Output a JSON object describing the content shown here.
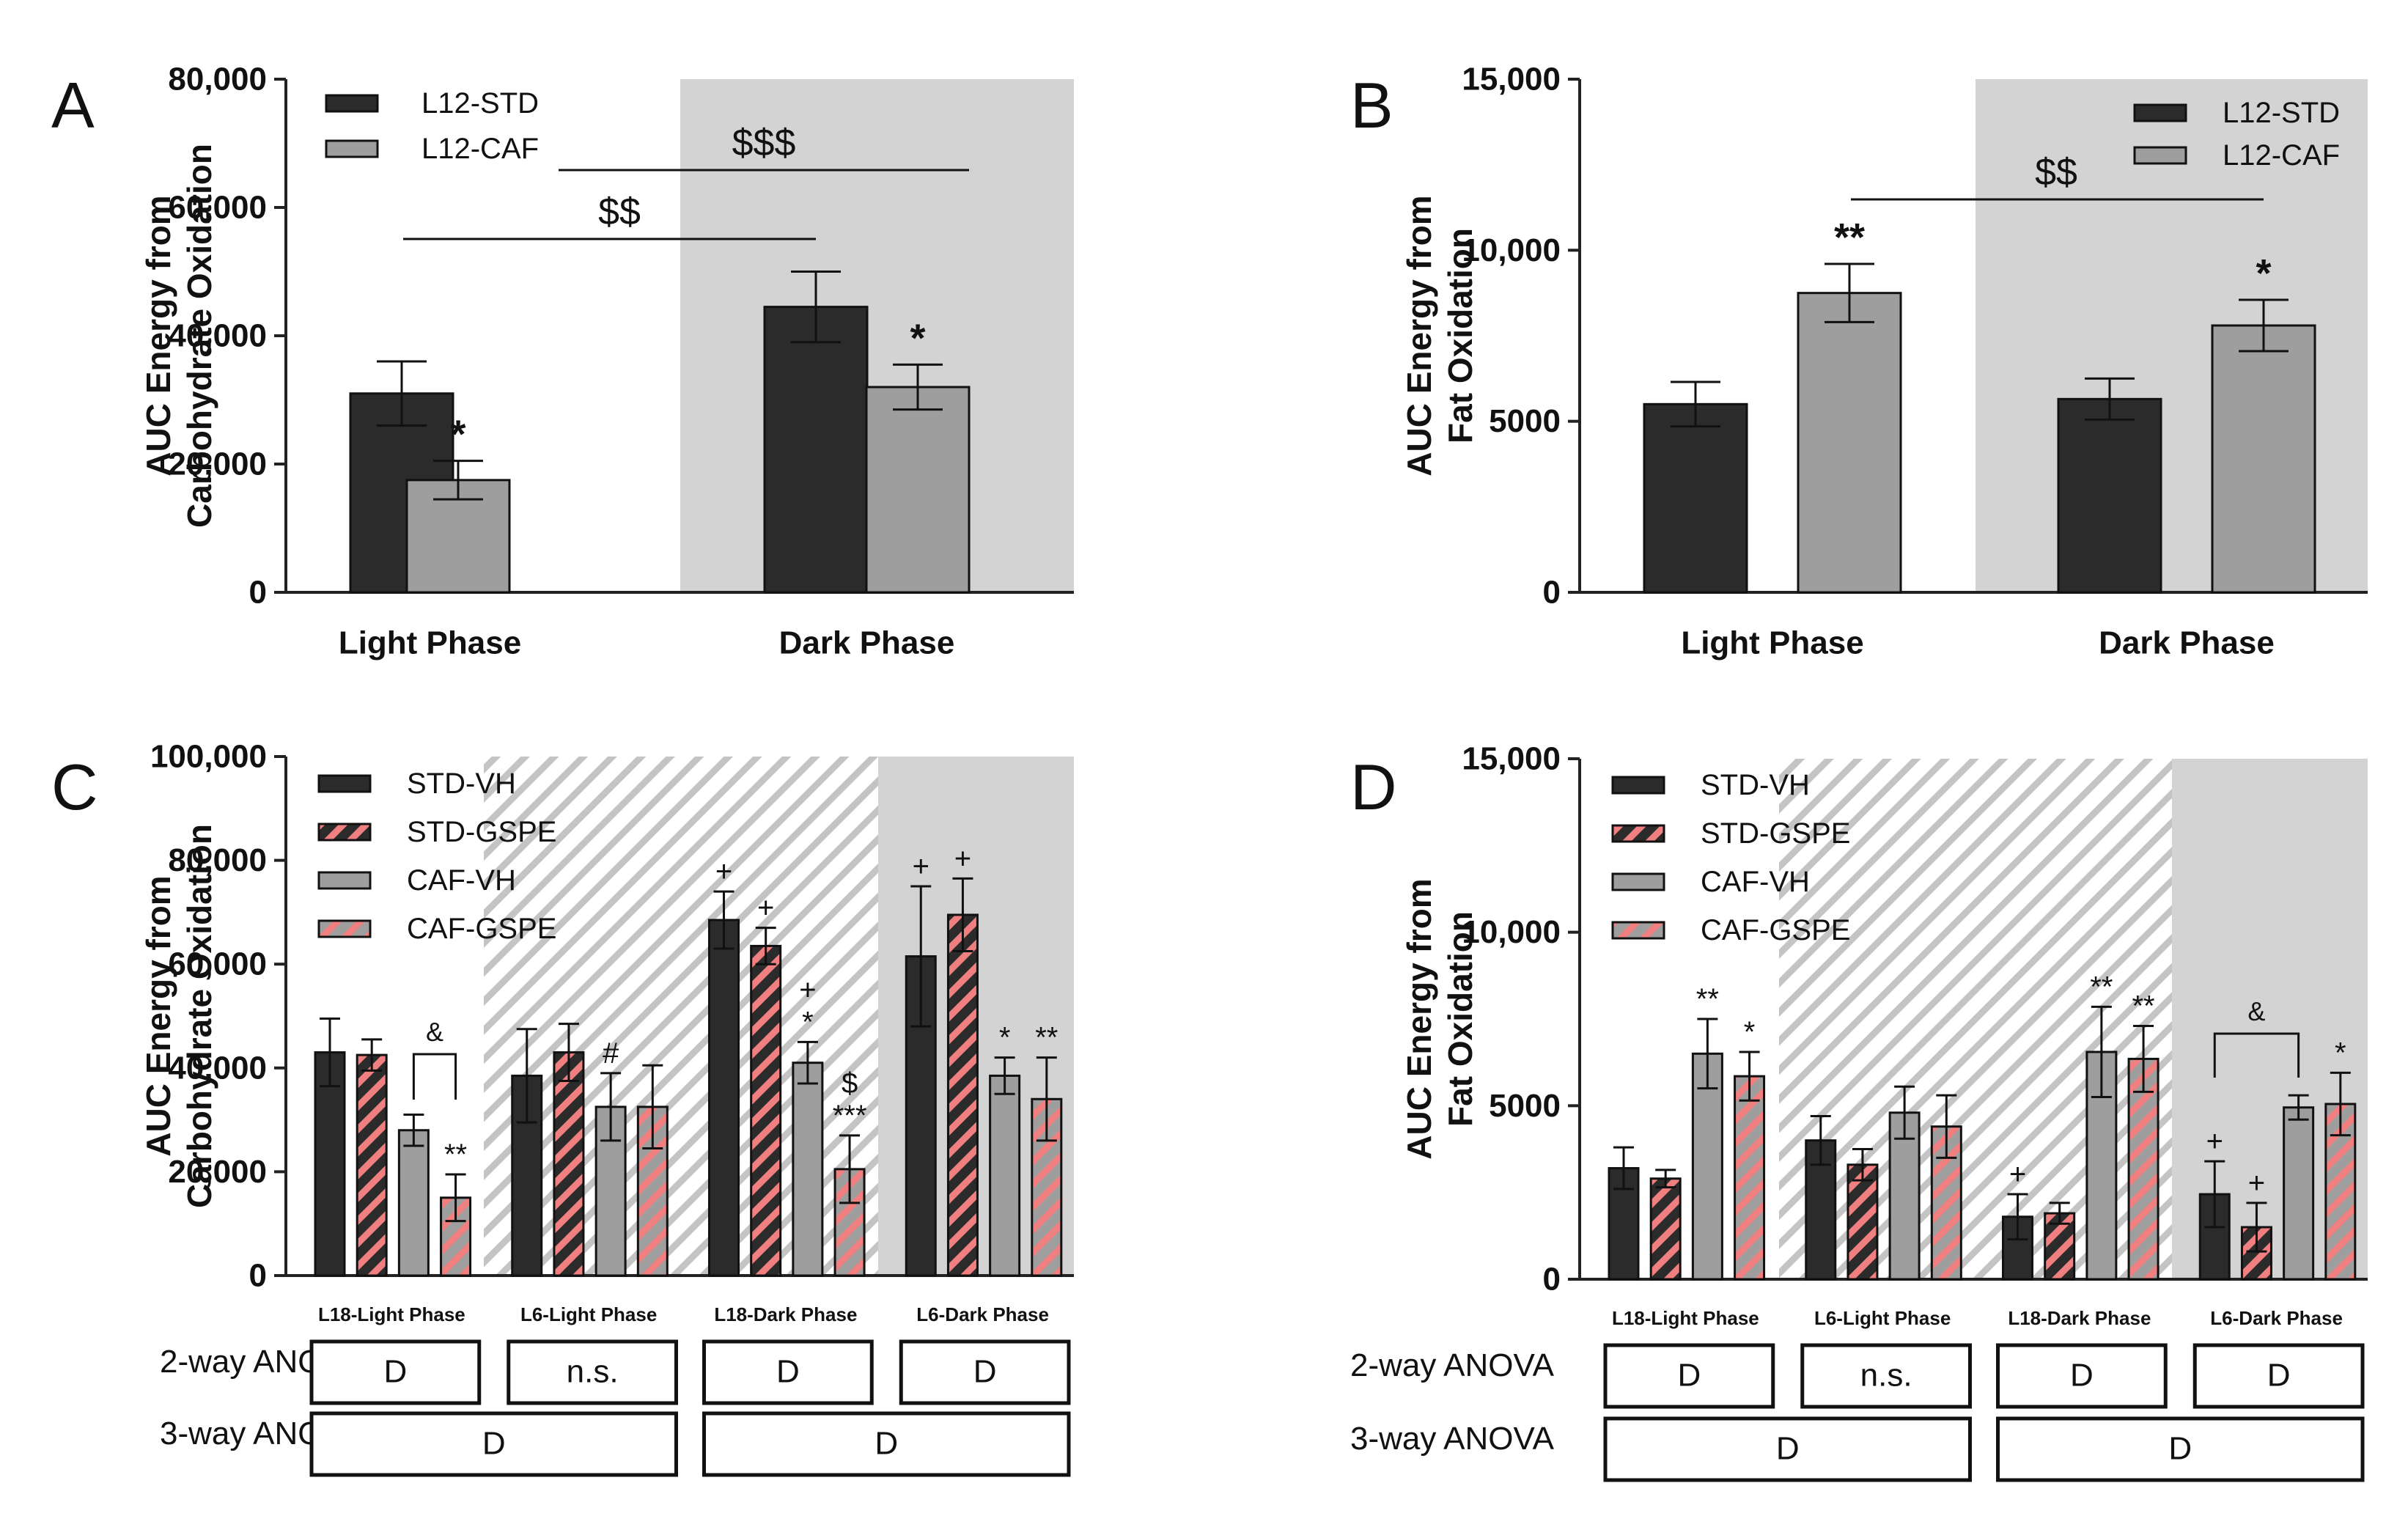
{
  "colors": {
    "std": "#2b2b2b",
    "caf": "#9e9e9e",
    "gspe_stripe": "#f08080",
    "shade": "#d3d3d3",
    "hatch": "#bdbdbd"
  },
  "chart_data": [
    {
      "panel": "A",
      "type": "bar",
      "ylabel": [
        "AUC Energy from",
        "Carbohydrate Oxidation"
      ],
      "ylim": [
        0,
        80000
      ],
      "yticks": [
        "0",
        "20,000",
        "40,000",
        "60,000",
        "80,000"
      ],
      "categories": [
        "Light Phase",
        "Dark Phase"
      ],
      "legend": [
        "L12-STD",
        "L12-CAF"
      ],
      "series": [
        {
          "name": "L12-STD",
          "values": [
            31000,
            44500
          ],
          "errors": [
            5000,
            5500
          ]
        },
        {
          "name": "L12-CAF",
          "values": [
            17500,
            32000
          ],
          "errors": [
            3000,
            3500
          ]
        }
      ],
      "annotations": {
        "stars": [
          "",
          "*",
          "",
          "*"
        ],
        "comparisons": [
          "$$",
          "$$$"
        ]
      }
    },
    {
      "panel": "B",
      "type": "bar",
      "ylabel": [
        "AUC Energy from",
        "Fat Oxidation"
      ],
      "ylim": [
        0,
        15000
      ],
      "yticks": [
        "0",
        "5000",
        "10,000",
        "15,000"
      ],
      "categories": [
        "Light Phase",
        "Dark Phase"
      ],
      "legend": [
        "L12-STD",
        "L12-CAF"
      ],
      "series": [
        {
          "name": "L12-STD",
          "values": [
            5500,
            5650
          ],
          "errors": [
            650,
            600
          ]
        },
        {
          "name": "L12-CAF",
          "values": [
            8750,
            7800
          ],
          "errors": [
            850,
            750
          ]
        }
      ],
      "annotations": {
        "stars": [
          "",
          "**",
          "",
          "*"
        ],
        "comparisons": [
          "$$"
        ]
      }
    },
    {
      "panel": "C",
      "type": "bar",
      "ylabel": [
        "AUC Energy from",
        "Carbohydrate Oxidation"
      ],
      "ylim": [
        0,
        100000
      ],
      "yticks": [
        "0",
        "20,000",
        "40,000",
        "60,000",
        "80,000",
        "100,000"
      ],
      "categories": [
        "L18-Light Phase",
        "L6-Light Phase",
        "L18-Dark Phase",
        "L6-Dark Phase"
      ],
      "legend": [
        "STD-VH",
        "STD-GSPE",
        "CAF-VH",
        "CAF-GSPE"
      ],
      "series": [
        {
          "name": "STD-VH",
          "values": [
            43000,
            38500,
            68500,
            61500
          ],
          "errors": [
            6500,
            9000,
            5500,
            13500
          ]
        },
        {
          "name": "STD-GSPE",
          "values": [
            42500,
            43000,
            63500,
            69500
          ],
          "errors": [
            3000,
            5500,
            3500,
            7000
          ]
        },
        {
          "name": "CAF-VH",
          "values": [
            28000,
            32500,
            41000,
            38500
          ],
          "errors": [
            3000,
            6500,
            4000,
            3500
          ]
        },
        {
          "name": "CAF-GSPE",
          "values": [
            15000,
            32500,
            20500,
            34000
          ],
          "errors": [
            4500,
            8000,
            6500,
            8000
          ]
        }
      ],
      "annotations": {
        "marks": [
          "",
          "",
          "",
          "**",
          "",
          "",
          "#",
          "",
          "+",
          "+",
          "+",
          "$",
          "+",
          "+",
          "*",
          "**"
        ],
        "marks2": [
          "",
          "",
          "",
          "",
          "",
          "",
          "",
          "",
          "",
          "",
          "*",
          "***",
          "",
          "",
          "",
          ""
        ],
        "bracket": "&"
      },
      "anova": {
        "two_way_label": "2-way ANOVA",
        "two_way": [
          "D",
          "n.s.",
          "D",
          "D"
        ],
        "three_way_label": "3-way ANOVA",
        "three_way": [
          "D",
          "D"
        ]
      }
    },
    {
      "panel": "D",
      "type": "bar",
      "ylabel": [
        "AUC Energy from",
        "Fat Oxidation"
      ],
      "ylim": [
        0,
        15000
      ],
      "yticks": [
        "0",
        "5000",
        "10,000",
        "15,000"
      ],
      "categories": [
        "L18-Light Phase",
        "L6-Light Phase",
        "L18-Dark Phase",
        "L6-Dark Phase"
      ],
      "legend": [
        "STD-VH",
        "STD-GSPE",
        "CAF-VH",
        "CAF-GSPE"
      ],
      "series": [
        {
          "name": "STD-VH",
          "values": [
            3200,
            4000,
            1800,
            2450
          ],
          "errors": [
            600,
            700,
            650,
            950
          ]
        },
        {
          "name": "STD-GSPE",
          "values": [
            2900,
            3300,
            1900,
            1500
          ],
          "errors": [
            250,
            450,
            300,
            700
          ]
        },
        {
          "name": "CAF-VH",
          "values": [
            6500,
            4800,
            6550,
            4950
          ],
          "errors": [
            1000,
            750,
            1300,
            350
          ]
        },
        {
          "name": "CAF-GSPE",
          "values": [
            5850,
            4400,
            6350,
            5050
          ],
          "errors": [
            700,
            900,
            950,
            900
          ]
        }
      ],
      "annotations": {
        "marks": [
          "",
          "",
          "**",
          "*",
          "",
          "",
          "",
          "",
          "+",
          "",
          "**",
          "**",
          "+",
          "+",
          "",
          "*"
        ],
        "marks2": [
          "",
          "",
          "",
          "",
          "",
          "",
          "",
          "",
          "",
          "",
          "",
          "",
          "",
          "",
          "",
          ""
        ],
        "bracket": "&"
      },
      "anova": {
        "two_way_label": "2-way ANOVA",
        "two_way": [
          "D",
          "n.s.",
          "D",
          "D"
        ],
        "three_way_label": "3-way ANOVA",
        "three_way": [
          "D",
          "D"
        ]
      }
    }
  ]
}
